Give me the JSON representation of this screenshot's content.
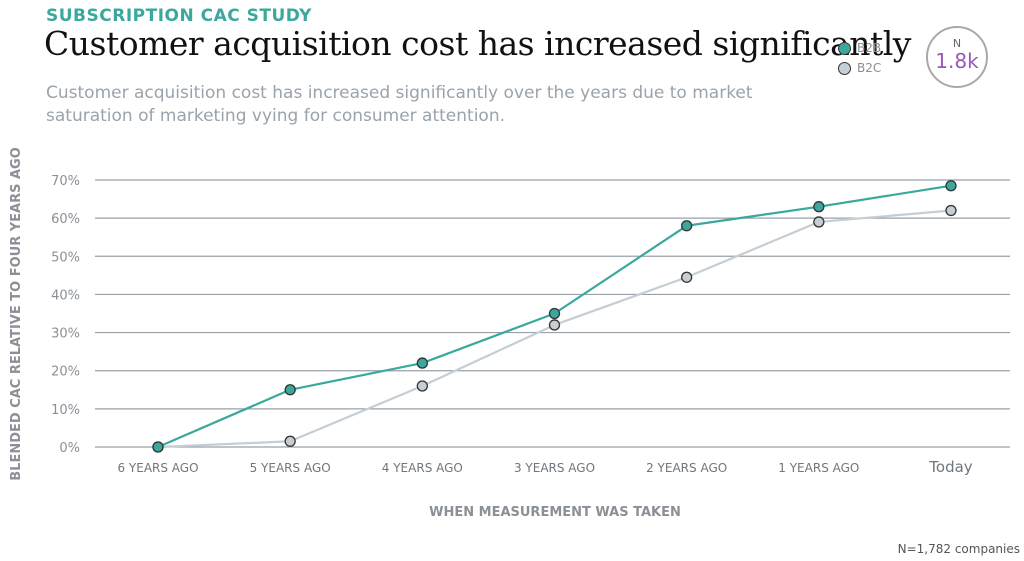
{
  "header": {
    "eyebrow": "SUBSCRIPTION CAC STUDY",
    "title": "Customer acquisition cost has increased significantly",
    "subtitle": "Customer acquisition cost has increased significantly over the years due to market saturation of marketing vying for consumer attention."
  },
  "badge": {
    "label": "N",
    "value": "1.8k"
  },
  "footnote": "N=1,782 companies",
  "colors": {
    "b2b": "#3aa89c",
    "b2c": "#c5ced4",
    "grid": "#9aa0a6",
    "axis_text": "#8a9096"
  },
  "chart_data": {
    "type": "line",
    "xlabel": "WHEN MEASUREMENT WAS TAKEN",
    "ylabel": "BLENDED CAC RELATIVE TO FOUR YEARS AGO",
    "categories": [
      "6 YEARS AGO",
      "5 YEARS AGO",
      "4 YEARS AGO",
      "3 YEARS AGO",
      "2 YEARS AGO",
      "1 YEARS AGO",
      "Today"
    ],
    "yticks": [
      "0%",
      "10%",
      "20%",
      "30%",
      "40%",
      "50%",
      "60%",
      "70%"
    ],
    "ylim": [
      0,
      70
    ],
    "grid": true,
    "legend_position": "top-right",
    "series": [
      {
        "name": "B2B",
        "values": [
          0,
          15,
          22,
          35,
          58,
          63,
          68.5
        ]
      },
      {
        "name": "B2C",
        "values": [
          0,
          1.5,
          16,
          32,
          44.5,
          59,
          62
        ]
      }
    ]
  }
}
